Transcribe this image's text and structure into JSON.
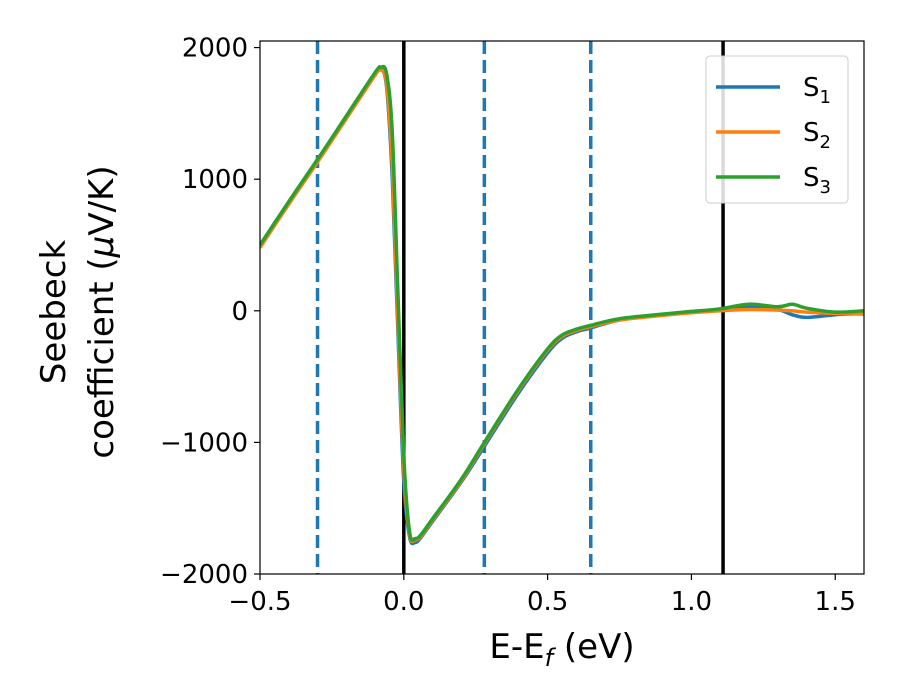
{
  "chart_data": {
    "type": "line",
    "xlabel": "E-E",
    "xlabel_sub": "f",
    "xlabel_unit": " (eV)",
    "ylabel_line1": "Seebeck",
    "ylabel_line2": "coefficient  (",
    "ylabel_mu": "μ",
    "ylabel_unit": "V/K)",
    "xlim": [
      -0.5,
      1.6
    ],
    "ylim": [
      -2000,
      2050
    ],
    "xticks": [
      -0.5,
      0.0,
      0.5,
      1.0,
      1.5
    ],
    "xtick_labels": [
      "−0.5",
      "0.0",
      "0.5",
      "1.0",
      "1.5"
    ],
    "yticks": [
      -2000,
      -1000,
      0,
      1000,
      2000
    ],
    "ytick_labels": [
      "−2000",
      "−1000",
      "0",
      "1000",
      "2000"
    ],
    "legend_position": "top-right",
    "grid": false,
    "vlines_solid": [
      0.0,
      1.11
    ],
    "vlines_dashed": [
      -0.3,
      0.28,
      0.65
    ],
    "vline_solid_color": "#000000",
    "vline_dashed_color": "#1f77b4",
    "series": [
      {
        "name": "S",
        "sub": "1",
        "color": "#1f77b4",
        "x": [
          -0.5,
          -0.4,
          -0.3,
          -0.2,
          -0.1,
          -0.08,
          -0.06,
          -0.04,
          -0.02,
          0.0,
          0.02,
          0.04,
          0.06,
          0.1,
          0.2,
          0.28,
          0.4,
          0.5,
          0.55,
          0.6,
          0.65,
          0.75,
          0.9,
          1.0,
          1.1,
          1.2,
          1.3,
          1.35,
          1.4,
          1.5,
          1.6
        ],
        "y": [
          490,
          820,
          1140,
          1470,
          1800,
          1840,
          1700,
          1000,
          -200,
          -1300,
          -1720,
          -1760,
          -1720,
          -1600,
          -1300,
          -1030,
          -620,
          -320,
          -210,
          -160,
          -130,
          -70,
          -30,
          -10,
          10,
          30,
          10,
          -30,
          -50,
          -30,
          -20
        ]
      },
      {
        "name": "S",
        "sub": "2",
        "color": "#ff7f0e",
        "x": [
          -0.5,
          -0.4,
          -0.3,
          -0.2,
          -0.1,
          -0.08,
          -0.06,
          -0.04,
          -0.02,
          0.0,
          0.02,
          0.04,
          0.06,
          0.1,
          0.2,
          0.28,
          0.4,
          0.5,
          0.55,
          0.6,
          0.65,
          0.75,
          0.9,
          1.0,
          1.1,
          1.2,
          1.3,
          1.35,
          1.4,
          1.5,
          1.6
        ],
        "y": [
          480,
          810,
          1130,
          1460,
          1790,
          1830,
          1720,
          1100,
          -100,
          -1200,
          -1700,
          -1740,
          -1710,
          -1590,
          -1290,
          -1010,
          -600,
          -300,
          -195,
          -150,
          -120,
          -70,
          -35,
          -15,
          0,
          10,
          5,
          0,
          -10,
          -20,
          -25
        ]
      },
      {
        "name": "S",
        "sub": "3",
        "color": "#2ca02c",
        "x": [
          -0.5,
          -0.4,
          -0.3,
          -0.2,
          -0.1,
          -0.08,
          -0.06,
          -0.04,
          -0.02,
          0.0,
          0.02,
          0.04,
          0.06,
          0.1,
          0.2,
          0.28,
          0.4,
          0.5,
          0.55,
          0.6,
          0.65,
          0.75,
          0.9,
          1.0,
          1.1,
          1.2,
          1.3,
          1.35,
          1.4,
          1.5,
          1.6
        ],
        "y": [
          500,
          830,
          1150,
          1480,
          1810,
          1850,
          1800,
          1350,
          100,
          -1100,
          -1680,
          -1730,
          -1700,
          -1580,
          -1280,
          -1000,
          -590,
          -290,
          -185,
          -140,
          -110,
          -60,
          -25,
          -5,
          15,
          50,
          30,
          50,
          20,
          -10,
          0
        ]
      }
    ]
  }
}
